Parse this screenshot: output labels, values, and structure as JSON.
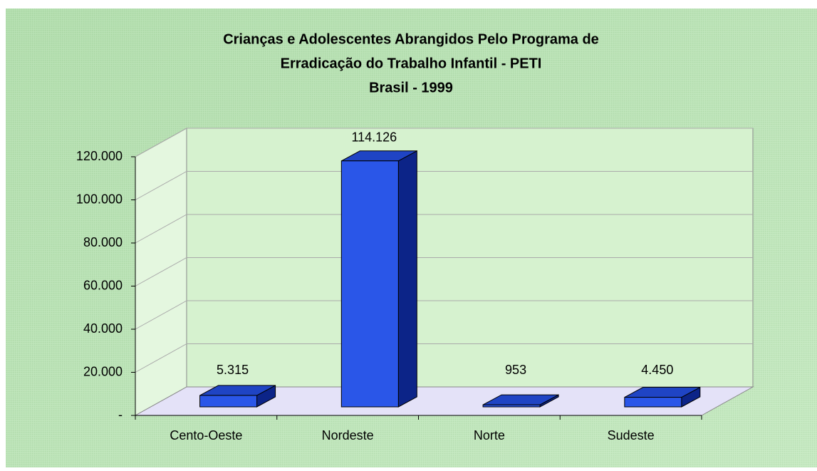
{
  "chart_data": {
    "type": "bar3d",
    "title": [
      "Crianças e Adolescentes Abrangidos Pelo Programa de",
      "Erradicação do Trabalho Infantil  - PETI",
      "Brasil -  1999"
    ],
    "categories": [
      "Cento-Oeste",
      "Nordeste",
      "Norte",
      "Sudeste"
    ],
    "values": [
      5315,
      114126,
      953,
      4450
    ],
    "value_labels": [
      "5.315",
      "114.126",
      "953",
      "4.450"
    ],
    "color": "#2a56e8",
    "ylim": [
      0,
      120000
    ],
    "yticks": [
      {
        "value": 0,
        "label": "-"
      },
      {
        "value": 20000,
        "label": "20.000"
      },
      {
        "value": 40000,
        "label": "40.000"
      },
      {
        "value": 60000,
        "label": "60.000"
      },
      {
        "value": 80000,
        "label": "80.000"
      },
      {
        "value": 100000,
        "label": "100.000"
      },
      {
        "value": 120000,
        "label": "120.000"
      }
    ],
    "grid": true
  }
}
